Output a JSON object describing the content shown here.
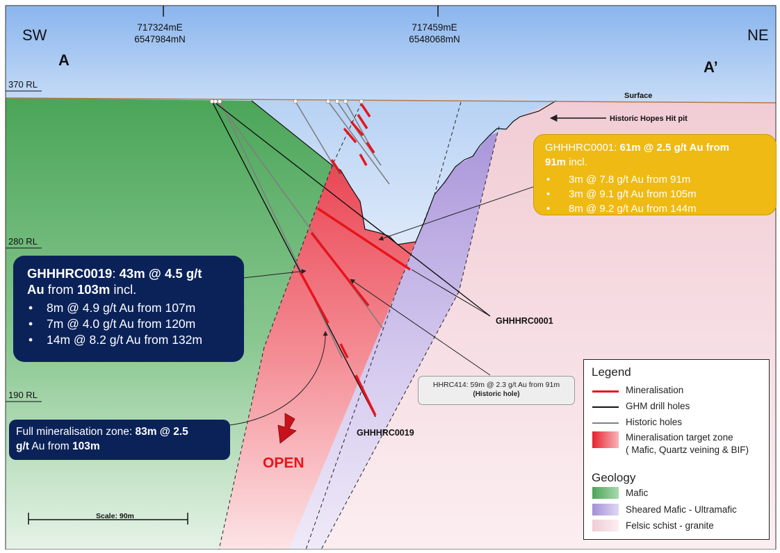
{
  "colors": {
    "sky": "#8fb9ef",
    "mafic": "#4ea85a",
    "sheared": "#a690d6",
    "felsic": "#f4d3da",
    "mineral_zone": "#ec4d5a",
    "mineral_line": "#e8141c",
    "ghm_hole": "#111111",
    "historic_hole": "#808080",
    "callout_navy": "#0b2259",
    "callout_gold": "#efba14"
  },
  "orientation": {
    "left": "SW",
    "right": "NE"
  },
  "section": {
    "start": "A",
    "end": "A’"
  },
  "coordinates": [
    {
      "easting": "717324mE",
      "northing": "6547984mN"
    },
    {
      "easting": "717459mE",
      "northing": "6548068mN"
    }
  ],
  "levels": [
    "370 RL",
    "280 RL",
    "190 RL"
  ],
  "labels": {
    "surface": "Surface",
    "pit": "Historic Hopes Hit pit",
    "hole_0001": "GHHHRC0001",
    "hole_0019": "GHHHRC0019",
    "open": "OPEN",
    "scale": "Scale: 90m"
  },
  "callout_0019": {
    "hole": "GHHHRC0019",
    "sep": ": ",
    "interval": "43m @ 4.5 g/t",
    "au": "Au",
    "from_text": " from ",
    "depth": "103m",
    "incl": " incl.",
    "items": [
      "8m @ 4.9 g/t Au from 107m",
      "7m @ 4.0 g/t Au from 120m",
      "14m @ 8.2 g/t Au from 132m"
    ]
  },
  "callout_0001": {
    "hole": "GHHHRC0001",
    "sep": ": ",
    "interval": "61m @ 2.5 g/t Au from",
    "depth": "91m",
    "incl": " incl.",
    "items": [
      "3m @ 7.8 g/t Au from 91m",
      "3m @ 9.1 g/t Au from  105m",
      "8m @ 9.2 g/t Au from 144m"
    ]
  },
  "callout_full": {
    "prefix": "Full mineralisation zone: ",
    "interval": "83m @ 2.5",
    "unit": "g/t",
    "rest": " Au from ",
    "depth": "103m"
  },
  "callout_historic": {
    "text": "HHRC414: 59m @ 2.3 g/t Au from 91m",
    "sub": "(Historic hole)"
  },
  "legend": {
    "title": "Legend",
    "items": [
      {
        "label": "Mineralisation"
      },
      {
        "label": "GHM drill holes"
      },
      {
        "label": "Historic holes"
      },
      {
        "label": "Mineralisation target zone"
      },
      {
        "label": "( Mafic, Quartz veining & BIF)"
      }
    ],
    "geology_title": "Geology",
    "geology_items": [
      {
        "label": "Mafic"
      },
      {
        "label": "Sheared Mafic - Ultramafic"
      },
      {
        "label": "Felsic schist - granite"
      }
    ]
  }
}
